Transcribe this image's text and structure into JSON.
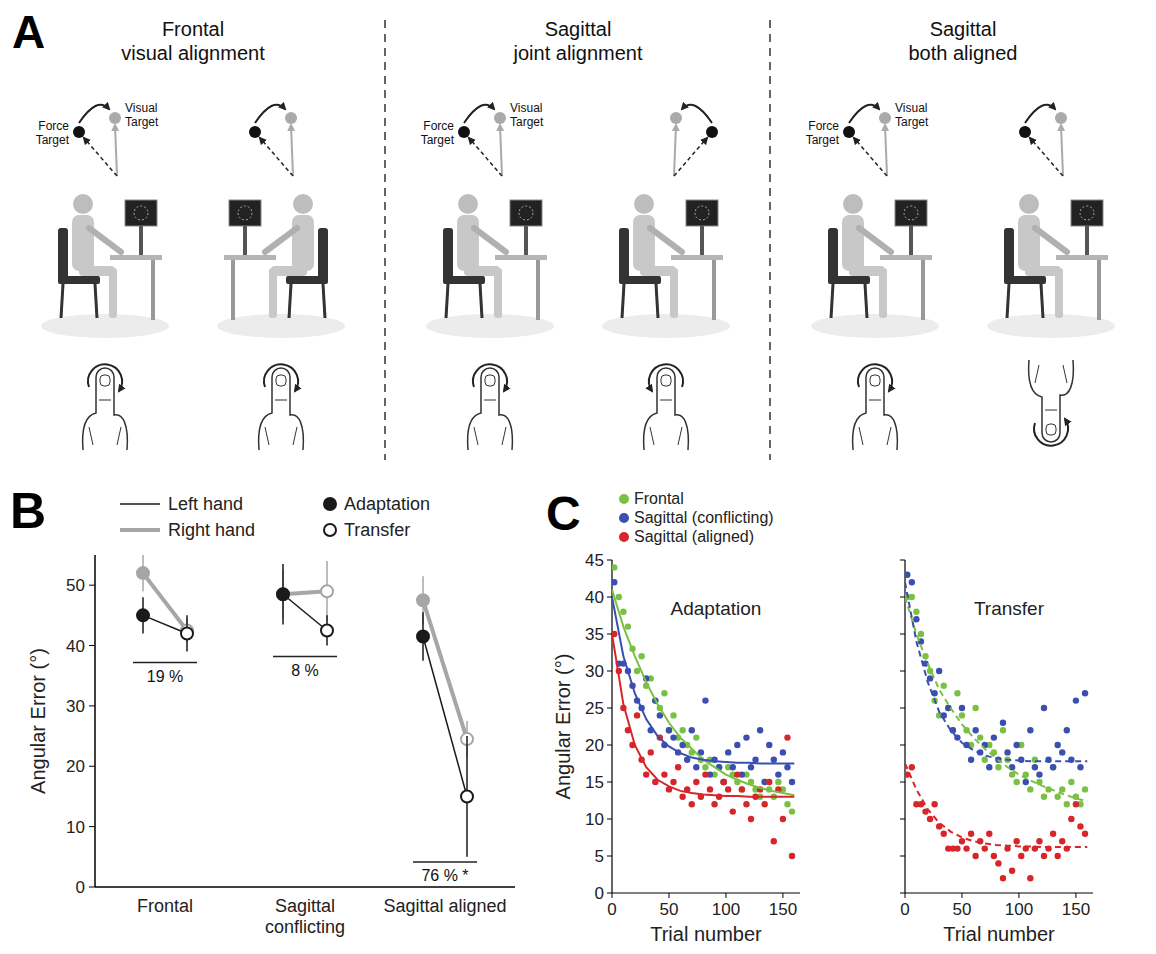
{
  "panel_a": {
    "letter": "A",
    "visual_target": "Visual Target",
    "force_target": "Force Target",
    "columns": [
      {
        "title": "Frontal visual alignment"
      },
      {
        "title": "Sagittal joint alignment"
      },
      {
        "title": "Sagittal both aligned"
      }
    ]
  },
  "chart_data": [
    {
      "type": "line",
      "panel_label": "B",
      "y_label": "Angular Error (°)",
      "categories": [
        "Frontal",
        "Sagittal conflicting",
        "Sagittal aligned"
      ],
      "ylim": [
        0,
        55
      ],
      "yticks": [
        0,
        10,
        20,
        30,
        40,
        50
      ],
      "legend": "top",
      "markers": [
        {
          "name": "Adaptation",
          "marker": "filled"
        },
        {
          "name": "Transfer",
          "marker": "open"
        }
      ],
      "series": [
        {
          "name": "Left hand",
          "color": "#1a1a1a",
          "adaptation": [
            45,
            48.5,
            41.5
          ],
          "adaptation_error": [
            3,
            5,
            4
          ],
          "transfer": [
            42,
            42.5,
            15
          ],
          "transfer_error": [
            3,
            2.5,
            10
          ]
        },
        {
          "name": "Right hand",
          "color": "#a6a6a6",
          "adaptation": [
            52,
            48.5,
            47.5
          ],
          "adaptation_error": [
            3,
            4,
            4
          ],
          "transfer": [
            42.5,
            49,
            24.5
          ],
          "transfer_error": [
            2,
            5,
            3
          ]
        }
      ],
      "transfer_percent_labels": [
        "19 %",
        "8 %",
        "76 % *"
      ]
    },
    {
      "type": "scatter",
      "panel_label": "C",
      "title": "Adaptation",
      "x_label": "Trial number",
      "y_label": "Angular Error (°)",
      "xlim": [
        0,
        165
      ],
      "ylim": [
        0,
        45
      ],
      "xticks": [
        0,
        50,
        100,
        150
      ],
      "yticks": [
        0,
        5,
        10,
        15,
        20,
        25,
        30,
        35,
        40,
        45
      ],
      "legend": "top",
      "x": [
        2,
        6,
        10,
        14,
        18,
        22,
        26,
        30,
        34,
        38,
        42,
        46,
        50,
        54,
        58,
        62,
        66,
        70,
        74,
        78,
        82,
        86,
        90,
        94,
        98,
        102,
        106,
        110,
        114,
        118,
        122,
        126,
        130,
        134,
        138,
        142,
        146,
        150,
        154,
        158
      ],
      "series": [
        {
          "name": "Frontal",
          "color": "#7ac143",
          "marker": "circle",
          "values": [
            44,
            40,
            38,
            36,
            33,
            30,
            32,
            28,
            29,
            26,
            25,
            27,
            22,
            24,
            21,
            22,
            20,
            19,
            21,
            18,
            17,
            18,
            16,
            17,
            15,
            17,
            16,
            15,
            14,
            16,
            15,
            14,
            13,
            15,
            14,
            13,
            15,
            14,
            12,
            11
          ]
        },
        {
          "name": "Sagittal (conflicting)",
          "color": "#3a4fb0",
          "marker": "circle",
          "values": [
            42,
            31,
            31,
            30,
            28,
            26,
            25,
            29,
            22,
            26,
            24,
            20,
            22,
            21,
            19,
            20,
            18,
            22,
            17,
            19,
            26,
            16,
            18,
            17,
            15,
            19,
            17,
            20,
            16,
            21,
            17,
            18,
            22,
            15,
            20,
            18,
            16,
            19,
            17,
            15
          ]
        },
        {
          "name": "Sagittal (aligned)",
          "color": "#d7262b",
          "marker": "circle",
          "values": [
            35,
            30,
            25,
            22,
            20,
            24,
            18,
            16,
            19,
            15,
            21,
            16,
            14,
            15,
            17,
            13,
            14,
            12,
            15,
            13,
            16,
            14,
            12,
            13,
            15,
            14,
            11,
            16,
            14,
            12,
            10,
            13,
            14,
            12,
            15,
            7,
            14,
            10,
            21,
            5
          ]
        },
        {
          "type": "line",
          "color": "#7ac143",
          "line_style": "solid",
          "x": [
            0,
            10,
            20,
            30,
            40,
            50,
            60,
            70,
            80,
            90,
            100,
            110,
            120,
            130,
            140,
            150,
            160
          ],
          "values": [
            41,
            36,
            32,
            28.5,
            25.5,
            23,
            21,
            19.5,
            18,
            17,
            16,
            15.3,
            14.7,
            14.2,
            13.8,
            13.5,
            13.2
          ]
        },
        {
          "type": "line",
          "color": "#3a4fb0",
          "line_style": "solid",
          "x": [
            0,
            10,
            20,
            30,
            40,
            50,
            60,
            70,
            80,
            90,
            100,
            110,
            120,
            130,
            140,
            150,
            160
          ],
          "values": [
            40,
            32,
            27,
            23.5,
            21.2,
            19.8,
            18.9,
            18.3,
            18,
            17.8,
            17.7,
            17.6,
            17.6,
            17.5,
            17.5,
            17.5,
            17.5
          ]
        },
        {
          "type": "line",
          "color": "#d7262b",
          "line_style": "solid",
          "x": [
            0,
            10,
            20,
            30,
            40,
            50,
            60,
            70,
            80,
            90,
            100,
            110,
            120,
            130,
            140,
            150,
            160
          ],
          "values": [
            35,
            25.5,
            20,
            17,
            15.3,
            14.4,
            13.8,
            13.5,
            13.3,
            13.2,
            13.1,
            13.1,
            13,
            13,
            13,
            13,
            13
          ]
        }
      ]
    },
    {
      "type": "scatter",
      "title": "Transfer",
      "x_label": "Trial number",
      "xlim": [
        0,
        165
      ],
      "ylim": [
        0,
        45
      ],
      "xticks": [
        0,
        50,
        100,
        150
      ],
      "yticks": [
        0,
        5,
        10,
        15,
        20,
        25,
        30,
        35,
        40,
        45
      ],
      "tick_labels": "x",
      "x": [
        2,
        6,
        10,
        14,
        18,
        22,
        26,
        30,
        34,
        38,
        42,
        46,
        50,
        54,
        58,
        62,
        66,
        70,
        74,
        78,
        82,
        86,
        90,
        94,
        98,
        102,
        106,
        110,
        114,
        118,
        122,
        126,
        130,
        134,
        138,
        142,
        146,
        150,
        154,
        158
      ],
      "series": [
        {
          "color": "#7ac143",
          "marker": "circle",
          "values": [
            40,
            40,
            38,
            35,
            32,
            30,
            26,
            24,
            28,
            25,
            22,
            27,
            24,
            22,
            20,
            25,
            21,
            18,
            20,
            19,
            17,
            22,
            18,
            16,
            15,
            20,
            16,
            14,
            18,
            15,
            13,
            14,
            17,
            13,
            14,
            12,
            15,
            13,
            12,
            14
          ]
        },
        {
          "color": "#3a4fb0",
          "marker": "circle",
          "values": [
            43,
            42,
            37,
            34,
            31,
            29,
            27,
            30,
            24,
            25,
            22,
            21,
            25,
            20,
            18,
            22,
            19,
            20,
            17,
            21,
            18,
            23,
            19,
            17,
            20,
            18,
            15,
            22,
            17,
            16,
            25,
            18,
            17,
            20,
            19,
            22,
            18,
            26,
            17,
            27
          ]
        },
        {
          "color": "#d7262b",
          "marker": "circle",
          "values": [
            16,
            17,
            12,
            12,
            11,
            10,
            12,
            9,
            8,
            6,
            6,
            6,
            7,
            6,
            8,
            5,
            7,
            6,
            8,
            5,
            4,
            2,
            6,
            3,
            7,
            5,
            6,
            2,
            6,
            7,
            5,
            6,
            8,
            5,
            7,
            6,
            10,
            12,
            9,
            8
          ]
        },
        {
          "type": "line",
          "color": "#7ac143",
          "line_style": "dashed",
          "x": [
            0,
            10,
            20,
            30,
            40,
            50,
            60,
            70,
            80,
            90,
            100,
            110,
            120,
            130,
            140,
            150,
            160
          ],
          "values": [
            40,
            35,
            31,
            27.5,
            25,
            22.8,
            21,
            19.5,
            18.2,
            17,
            16,
            15.2,
            14.5,
            13.9,
            13.3,
            12.8,
            12.4
          ]
        },
        {
          "type": "line",
          "color": "#3a4fb0",
          "line_style": "dashed",
          "x": [
            0,
            10,
            20,
            30,
            40,
            50,
            60,
            70,
            80,
            90,
            100,
            110,
            120,
            130,
            140,
            150,
            160
          ],
          "values": [
            42,
            34,
            28.5,
            24.5,
            22,
            20.3,
            19.3,
            18.6,
            18.2,
            18,
            17.9,
            17.8,
            17.8,
            17.8,
            17.8,
            17.8,
            17.8
          ]
        },
        {
          "type": "line",
          "color": "#d7262b",
          "line_style": "dashed",
          "x": [
            0,
            10,
            20,
            30,
            40,
            50,
            60,
            70,
            80,
            90,
            100,
            110,
            120,
            130,
            140,
            150,
            160
          ],
          "values": [
            17.5,
            14,
            11.3,
            9.5,
            8.3,
            7.5,
            7,
            6.7,
            6.5,
            6.4,
            6.3,
            6.3,
            6.2,
            6.2,
            6.2,
            6.2,
            6.2
          ]
        }
      ]
    }
  ]
}
